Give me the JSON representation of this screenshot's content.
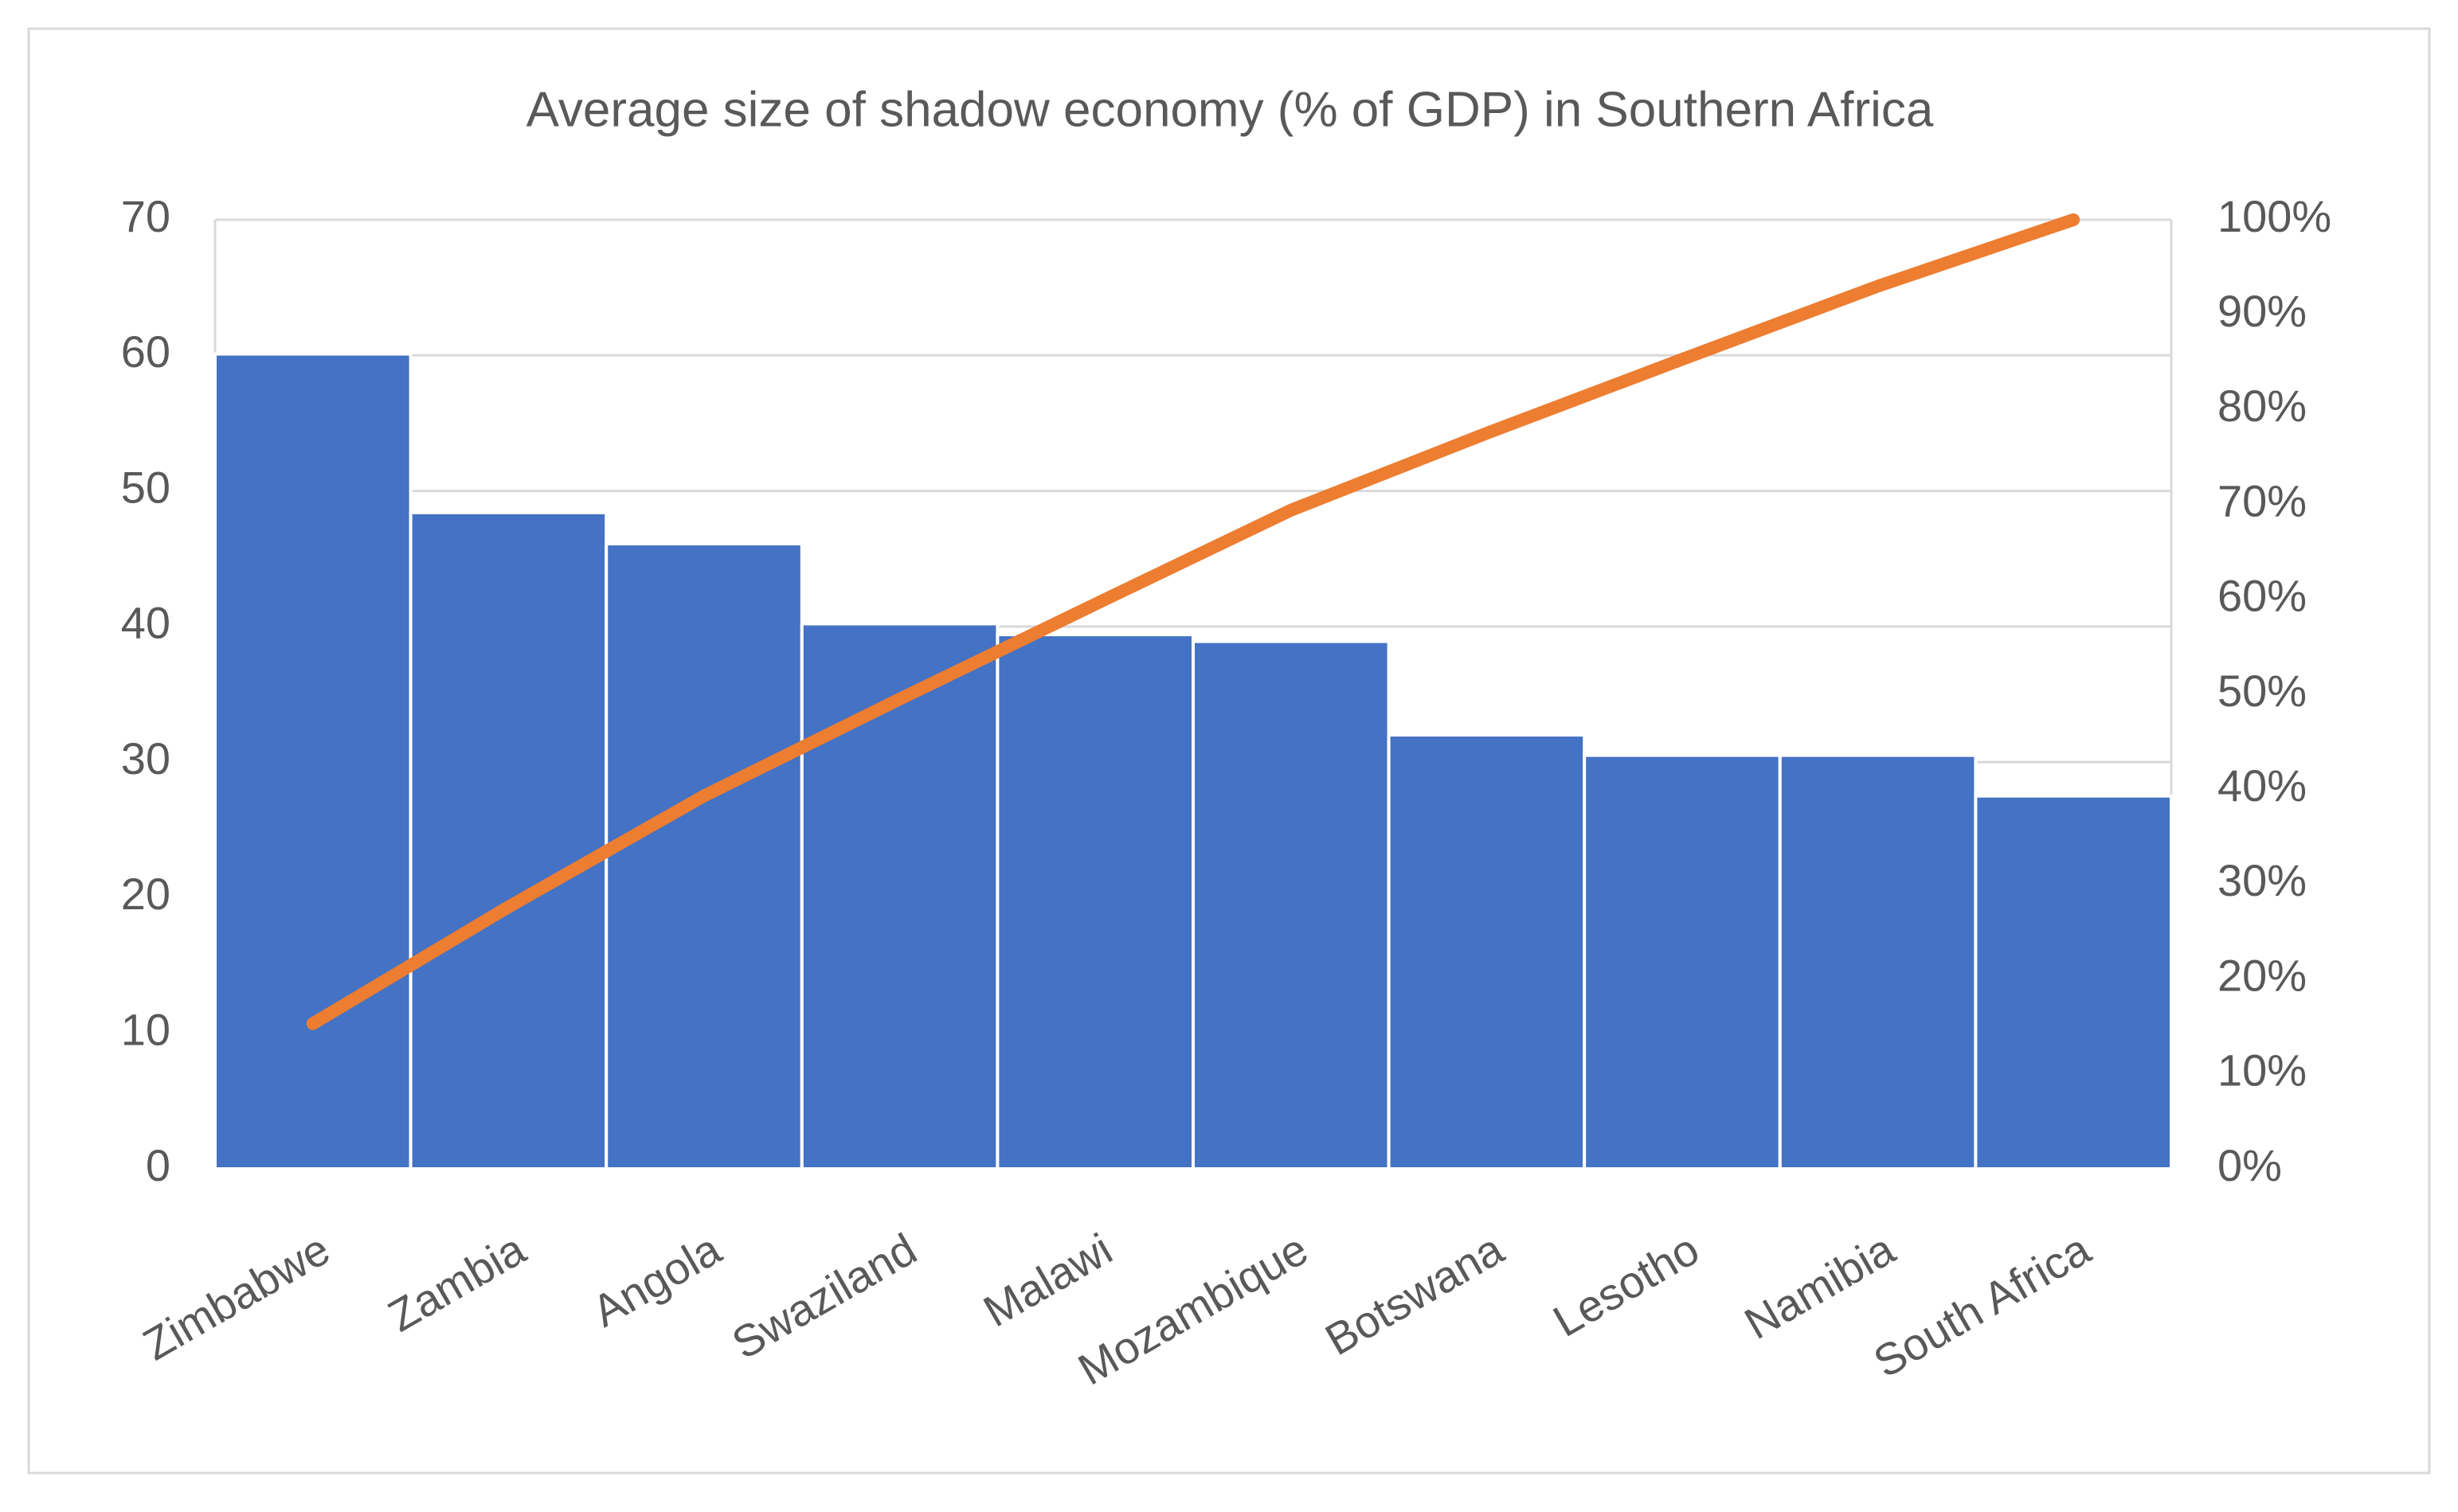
{
  "chart_data": {
    "type": "pareto",
    "title": "Average size of shadow economy (% of GDP) in Southern Africa",
    "categories": [
      "Zimbabwe",
      "Zambia",
      "Angola",
      "Swaziland",
      "Malawi",
      "Mozambique",
      "Botswana",
      "Lesotho",
      "Namibia",
      "South Africa"
    ],
    "series": [
      {
        "type": "bar",
        "color": "#4472c4",
        "values": [
          60.1,
          48.4,
          46.1,
          40.2,
          39.4,
          38.9,
          32.0,
          30.5,
          30.5,
          27.5
        ]
      },
      {
        "type": "line",
        "color": "#ed7d31",
        "axis": "y2",
        "values": [
          15.3,
          27.6,
          39.3,
          49.5,
          59.5,
          69.4,
          77.5,
          85.3,
          93.0,
          100
        ]
      }
    ],
    "ylim": [
      0,
      70
    ],
    "yticks": [
      0,
      10,
      20,
      30,
      40,
      50,
      60,
      70
    ],
    "y2lim": [
      0,
      100
    ],
    "y2ticks": [
      {
        "value": 0,
        "label": "0%"
      },
      {
        "value": 10,
        "label": "10%"
      },
      {
        "value": 20,
        "label": "20%"
      },
      {
        "value": 30,
        "label": "30%"
      },
      {
        "value": 40,
        "label": "40%"
      },
      {
        "value": 50,
        "label": "50%"
      },
      {
        "value": 60,
        "label": "60%"
      },
      {
        "value": 70,
        "label": "70%"
      },
      {
        "value": 80,
        "label": "80%"
      },
      {
        "value": 90,
        "label": "90%"
      },
      {
        "value": 100,
        "label": "100%"
      }
    ],
    "grid": true
  }
}
